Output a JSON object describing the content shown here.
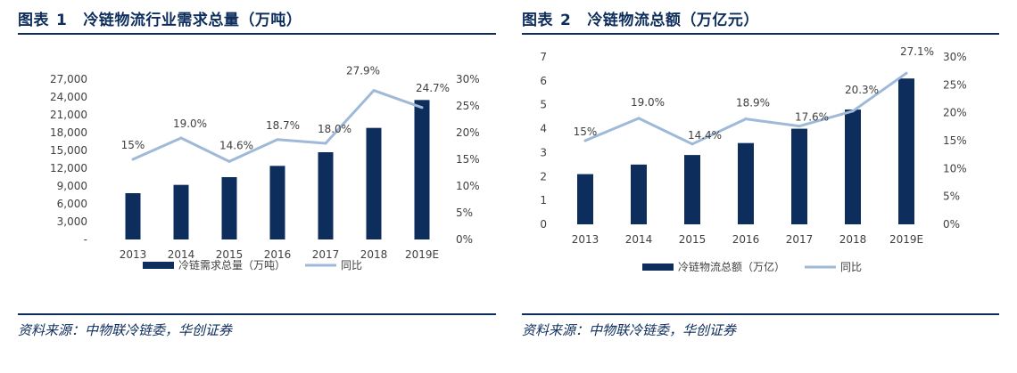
{
  "colors": {
    "bar": "#0d2d5c",
    "line": "#9fb9d9",
    "title": "#0d2d5c"
  },
  "figures": [
    {
      "label": "图表",
      "number": "1",
      "title": "冷链物流行业需求总量（万吨）",
      "source": "资料来源：中物联冷链委，华创证券"
    },
    {
      "label": "图表",
      "number": "2",
      "title": "冷链物流总额（万亿元）",
      "source": "资料来源：中物联冷链委，华创证券"
    }
  ],
  "chart_data": [
    {
      "type": "bar",
      "categories": [
        "2013",
        "2014",
        "2015",
        "2016",
        "2017",
        "2018",
        "2019E"
      ],
      "series": [
        {
          "name": "冷链需求总量（万吨）",
          "kind": "bar",
          "axis": "left",
          "values": [
            7800,
            9200,
            10500,
            12400,
            14700,
            18800,
            23500
          ]
        },
        {
          "name": "同比",
          "kind": "line",
          "axis": "right",
          "values": [
            15,
            19.0,
            14.6,
            18.7,
            18.0,
            27.9,
            24.7
          ],
          "labels": [
            "15%",
            "19.0%",
            "14.6%",
            "18.7%",
            "18.0%",
            "27.9%",
            "24.7%"
          ]
        }
      ],
      "y_left": {
        "min": 0,
        "max": 27000,
        "ticks": [
          "-",
          "3,000",
          "6,000",
          "9,000",
          "12,000",
          "15,000",
          "18,000",
          "21,000",
          "24,000",
          "27,000"
        ]
      },
      "y_right": {
        "min": 0,
        "max": 30,
        "ticks": [
          "0%",
          "5%",
          "10%",
          "15%",
          "20%",
          "25%",
          "30%"
        ]
      },
      "grid": false,
      "legend": "bottom"
    },
    {
      "type": "bar",
      "categories": [
        "2013",
        "2014",
        "2015",
        "2016",
        "2017",
        "2018",
        "2019E"
      ],
      "series": [
        {
          "name": "冷链物流总额（万亿）",
          "kind": "bar",
          "axis": "left",
          "values": [
            2.1,
            2.5,
            2.9,
            3.4,
            4.0,
            4.8,
            6.1
          ]
        },
        {
          "name": "同比",
          "kind": "line",
          "axis": "right",
          "values": [
            15,
            19.0,
            14.4,
            18.9,
            17.6,
            20.3,
            27.1
          ],
          "labels": [
            "15%",
            "19.0%",
            "14.4%",
            "18.9%",
            "17.6%",
            "20.3%",
            "27.1%"
          ]
        }
      ],
      "y_left": {
        "min": 0,
        "max": 7,
        "ticks": [
          "0",
          "1",
          "2",
          "3",
          "4",
          "5",
          "6",
          "7"
        ]
      },
      "y_right": {
        "min": 0,
        "max": 30,
        "ticks": [
          "0%",
          "5%",
          "10%",
          "15%",
          "20%",
          "25%",
          "30%"
        ]
      },
      "grid": false,
      "legend": "bottom"
    }
  ]
}
